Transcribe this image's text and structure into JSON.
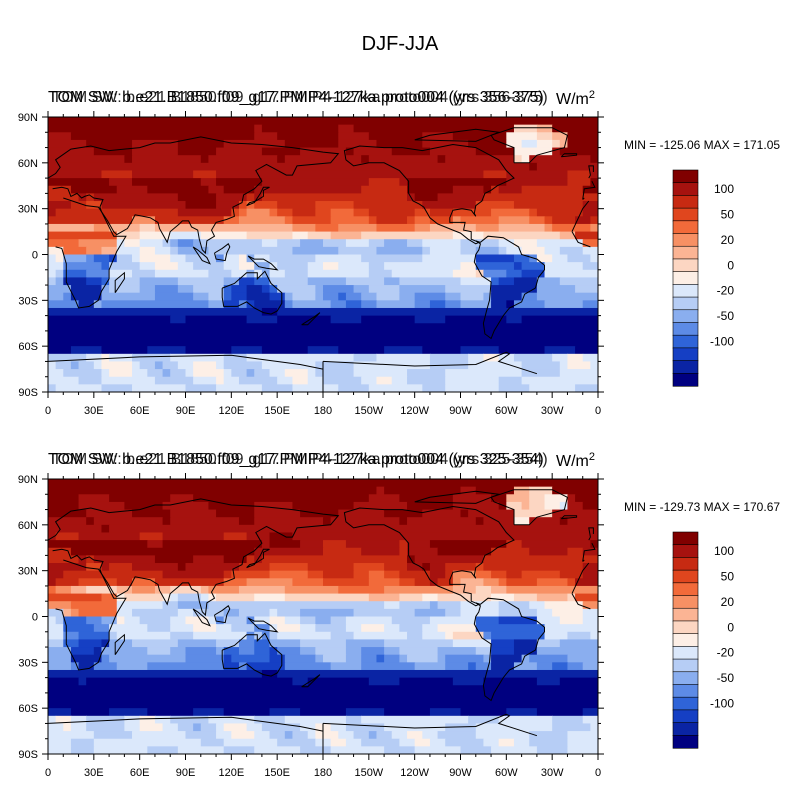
{
  "page_title": "DJF-JJA",
  "chart_data": [
    {
      "type": "heatmap",
      "subtitle_left": "TOM SW: b.e21.B1850.f09_g17.PMIP4-127ka.proto004 (yrs 356-375)",
      "subtitle_left_overprint": "TOM SW: b.e21.B1850.f09_g17.PMIP4-127ka.proto004 (yrs 356-375)",
      "units": "W/m",
      "units_sup": "2",
      "stats_text": "MIN = -125.06 MAX = 171.05",
      "min": -125.06,
      "max": 171.05,
      "lat_ticks": [
        "90N",
        "60N",
        "30N",
        "0",
        "30S",
        "60S",
        "90S"
      ],
      "lon_ticks": [
        "0",
        "30E",
        "60E",
        "90E",
        "120E",
        "150E",
        "180",
        "150W",
        "120W",
        "90W",
        "60W",
        "30W",
        "0"
      ],
      "lon_range": [
        0,
        360
      ],
      "lat_range": [
        -90,
        90
      ],
      "field_description": "DJF minus JJA top-of-model net shortwave; strongly positive over NH mid/high latitudes and NH subtropics, strongly negative over Southern Ocean, near zero over Antarctica"
    },
    {
      "type": "heatmap",
      "subtitle_left": "TOM SW: b.e21.B1850.f09_g17.PMIP4-127ka.proto004 (yrs 325-354)",
      "subtitle_left_overprint": "TOM SW: b.e21.B1850.f09_g17.PMIP4-127ka.proto004 (yrs 325-354)",
      "units": "W/m",
      "units_sup": "2",
      "stats_text": "MIN = -129.73 MAX = 170.67",
      "min": -129.73,
      "max": 170.67,
      "lat_ticks": [
        "90N",
        "60N",
        "30N",
        "0",
        "30S",
        "60S",
        "90S"
      ],
      "lon_ticks": [
        "0",
        "30E",
        "60E",
        "90E",
        "120E",
        "150E",
        "180",
        "150W",
        "120W",
        "90W",
        "60W",
        "30W",
        "0"
      ],
      "lon_range": [
        0,
        360
      ],
      "lat_range": [
        -90,
        90
      ],
      "field_description": "Same seasonal contrast for a different averaging period"
    }
  ],
  "colorbar": {
    "labels": [
      "100",
      "50",
      "20",
      "0",
      "-20",
      "-50",
      "-100"
    ],
    "colors": [
      "#800000",
      "#a6120f",
      "#c72a12",
      "#e0461e",
      "#f26a3a",
      "#f79064",
      "#fbb494",
      "#fcd6c2",
      "#fdefe6",
      "#dbe8fb",
      "#b6cdf5",
      "#8aaeef",
      "#5d8be6",
      "#2f64d8",
      "#153fc4",
      "#0a24a4",
      "#000080"
    ]
  }
}
